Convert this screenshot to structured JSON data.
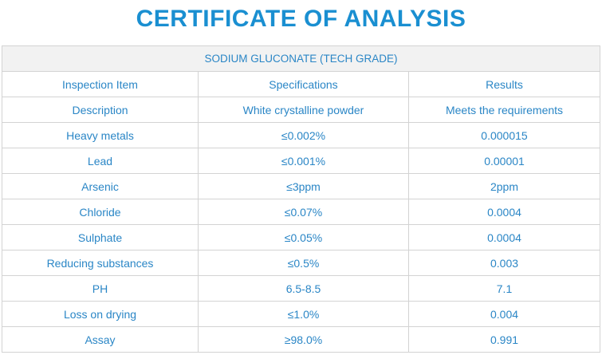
{
  "document": {
    "title": "CERTIFICATE OF ANALYSIS",
    "product": "SODIUM GLUCONATE (TECH GRADE)"
  },
  "colors": {
    "title": "#1a8fd1",
    "text": "#2a86c6",
    "border": "#d3d3d3",
    "caption_background": "#f2f2f2"
  },
  "table": {
    "headers": [
      "Inspection Item",
      "Specifications",
      "Results"
    ],
    "rows": [
      [
        "Description",
        "White crystalline powder",
        "Meets the requirements"
      ],
      [
        "Heavy metals",
        "≤0.002%",
        "0.000015"
      ],
      [
        "Lead",
        "≤0.001%",
        "0.00001"
      ],
      [
        "Arsenic",
        "≤3ppm",
        "2ppm"
      ],
      [
        "Chloride",
        "≤0.07%",
        "0.0004"
      ],
      [
        "Sulphate",
        "≤0.05%",
        "0.0004"
      ],
      [
        "Reducing substances",
        "≤0.5%",
        "0.003"
      ],
      [
        "PH",
        "6.5-8.5",
        "7.1"
      ],
      [
        "Loss on drying",
        "≤1.0%",
        "0.004"
      ],
      [
        "Assay",
        "≥98.0%",
        "0.991"
      ]
    ]
  }
}
